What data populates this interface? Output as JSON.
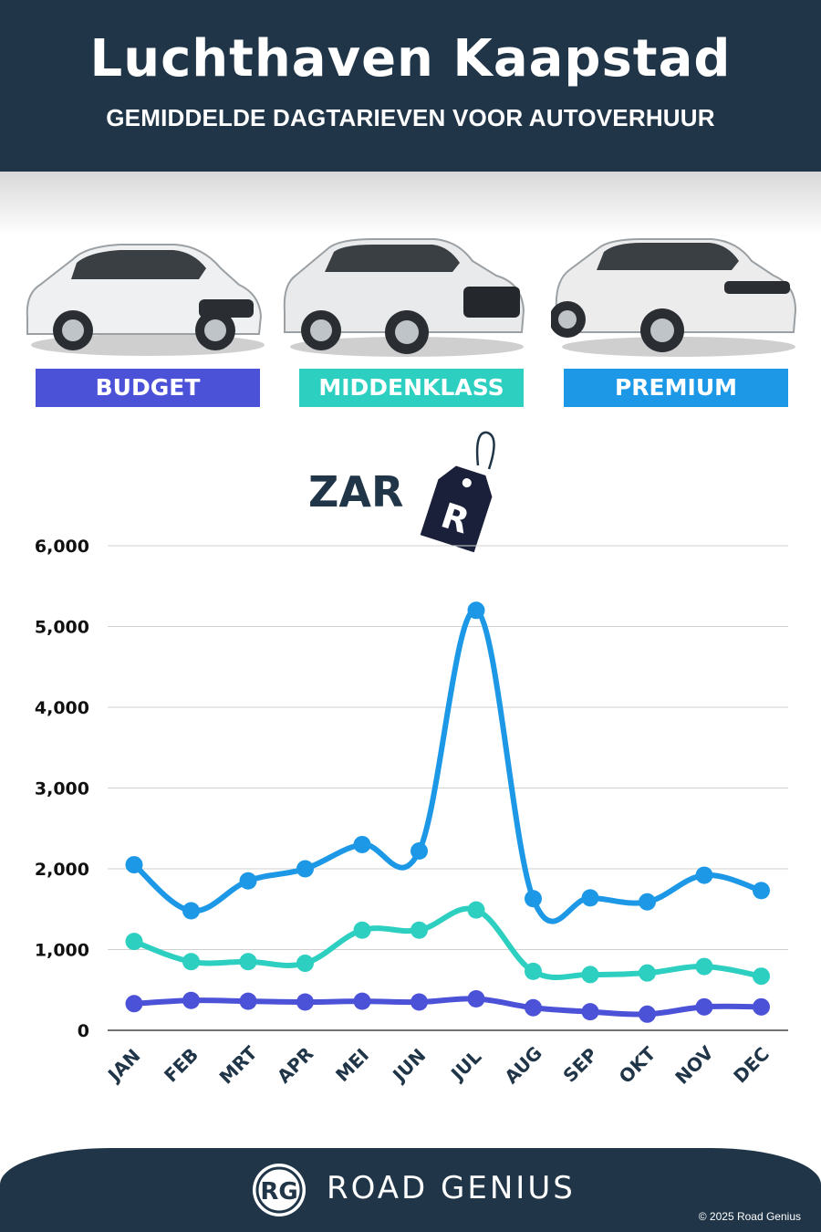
{
  "header": {
    "title": "Luchthaven Kaapstad",
    "subtitle": "GEMIDDELDE DAGTARIEVEN VOOR AUTOVERHUUR"
  },
  "categories": [
    {
      "label": "BUDGET",
      "color": "#4c52d8"
    },
    {
      "label": "MIDDENKLASS",
      "color": "#2ccfc0"
    },
    {
      "label": "PREMIUM",
      "color": "#1d98e6"
    }
  ],
  "currency": {
    "label": "ZAR",
    "tag_symbol": "R"
  },
  "chart_data": {
    "type": "line",
    "categories": [
      "JAN",
      "FEB",
      "MRT",
      "APR",
      "MEI",
      "JUN",
      "JUL",
      "AUG",
      "SEP",
      "OKT",
      "NOV",
      "DEC"
    ],
    "series": [
      {
        "name": "PREMIUM",
        "color": "#1d98e6",
        "values": [
          2050,
          1480,
          1850,
          2000,
          2300,
          2220,
          5200,
          1630,
          1640,
          1590,
          1920,
          1730
        ]
      },
      {
        "name": "MIDDENKLASS",
        "color": "#2ccfc0",
        "values": [
          1100,
          850,
          850,
          830,
          1240,
          1240,
          1490,
          730,
          690,
          710,
          790,
          670
        ]
      },
      {
        "name": "BUDGET",
        "color": "#4c52d8",
        "values": [
          330,
          370,
          360,
          350,
          360,
          350,
          390,
          280,
          230,
          200,
          290,
          290
        ]
      }
    ],
    "yticks": [
      "0",
      "1,000",
      "2,000",
      "3,000",
      "4,000",
      "5,000",
      "6,000"
    ],
    "ylim": [
      0,
      6000
    ],
    "grid": true
  },
  "footer": {
    "logo_text": "RG",
    "brand": "ROAD GENIUS",
    "copyright": "© 2025 Road Genius"
  }
}
